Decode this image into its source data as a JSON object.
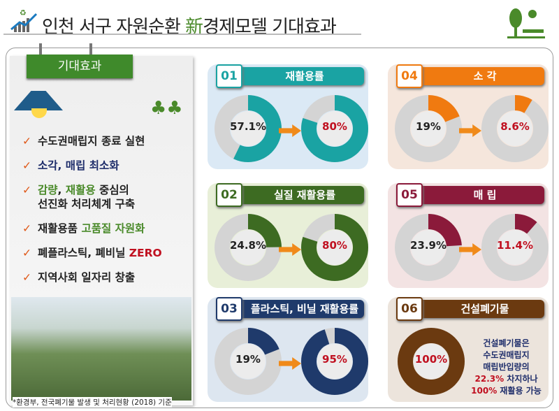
{
  "header": {
    "title_a": "인천 서구 자원순환 ",
    "title_hl": "新",
    "title_b": "경제모델 기대효과",
    "logo_icon": "recycle-chart-icon",
    "tree_icon": "tree-bench-icon"
  },
  "left": {
    "board_label": "기대효과",
    "items": [
      [
        {
          "t": "수도권매립지 종료 실현",
          "c": ""
        }
      ],
      [
        {
          "t": "소각, 매립 최소화",
          "c": "n"
        }
      ],
      [
        {
          "t": "감량",
          "c": "g"
        },
        {
          "t": ", ",
          "c": ""
        },
        {
          "t": "재활용",
          "c": "g"
        },
        {
          "t": " 중심의\n선진화 처리체계 구축",
          "c": ""
        }
      ],
      [
        {
          "t": "재활용품 ",
          "c": ""
        },
        {
          "t": "고품질 자원화",
          "c": "g"
        }
      ],
      [
        {
          "t": "폐플라스틱, 폐비닐 ",
          "c": ""
        },
        {
          "t": "ZERO",
          "c": "r"
        }
      ],
      [
        {
          "t": "지역사회 일자리 창출",
          "c": ""
        }
      ]
    ],
    "footnote": "*환경부, 전국폐기물 발생 및 처리현황 (2018) 기준"
  },
  "cards": [
    {
      "num": "01",
      "title": "재활용률",
      "color": "#1aa3a3",
      "bg": "#dbe9f5",
      "before": 57.1,
      "after": 80,
      "before_label": "57.1%",
      "after_label": "80%"
    },
    {
      "num": "02",
      "title": "실질 재활용률",
      "color": "#3d6b22",
      "bg": "#e8efd8",
      "before": 24.8,
      "after": 80,
      "before_label": "24.8%",
      "after_label": "80%"
    },
    {
      "num": "03",
      "title": "플라스틱, 비닐 재활용률",
      "color": "#1f3a6b",
      "bg": "#dde6f0",
      "before": 19,
      "after": 95,
      "before_label": "19%",
      "after_label": "95%"
    },
    {
      "num": "04",
      "title": "소    각",
      "color": "#f07a10",
      "bg": "#f5e6dc",
      "before": 19,
      "after": 8.6,
      "before_label": "19%",
      "after_label": "8.6%"
    },
    {
      "num": "05",
      "title": "매    립",
      "color": "#8b1a3a",
      "bg": "#f3e3e3",
      "before": 23.9,
      "after": 11.4,
      "before_label": "23.9%",
      "after_label": "11.4%"
    },
    {
      "num": "06",
      "title": "건설폐기물",
      "color": "#6b3a10",
      "bg": "#ece4dc",
      "value": 100,
      "value_label": "100%",
      "note": [
        {
          "t": "건설폐기물은\n수도권매립지\n매립반입량의\n",
          "c": ""
        },
        {
          "t": "22.3%",
          "c": "r"
        },
        {
          "t": " 차지하나\n",
          "c": ""
        },
        {
          "t": "100%",
          "c": "r"
        },
        {
          "t": " 재활용 가능",
          "c": ""
        }
      ]
    }
  ]
}
